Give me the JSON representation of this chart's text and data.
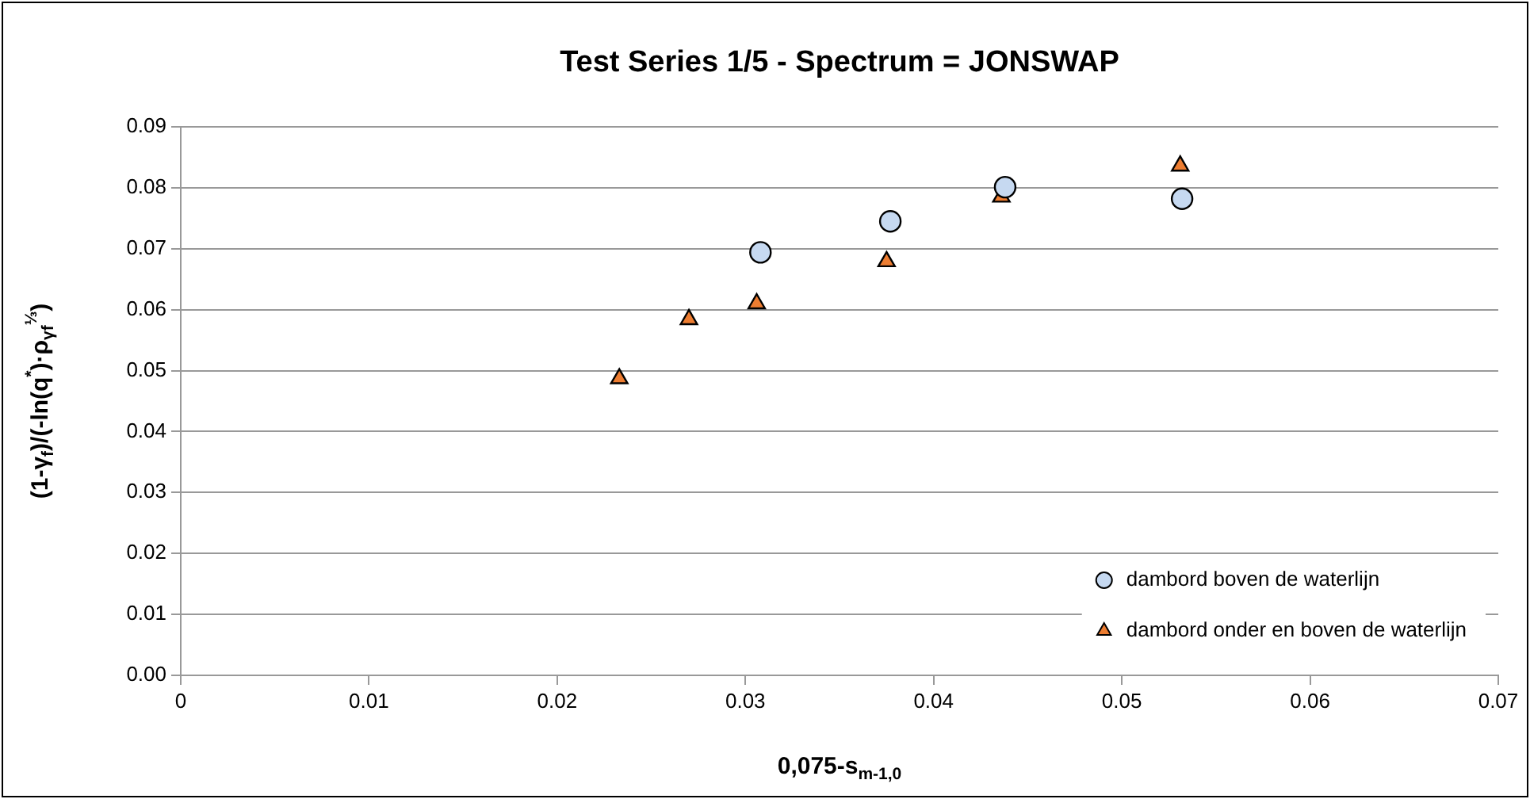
{
  "chart_data": {
    "type": "scatter",
    "title": "Test Series 1/5 - Spectrum = JONSWAP",
    "xlabel": "0,075-s$_{m-1,0}$",
    "ylabel": "(1-γ$_{f}$)/(-ln(q$^{*}$)·ρ$_{γf}$$^{⅓}$)",
    "xlim": [
      0,
      0.07
    ],
    "xticks": [
      0,
      0.01,
      0.02,
      0.03,
      0.04,
      0.05,
      0.06,
      0.07
    ],
    "ylim": [
      0,
      0.09
    ],
    "yticks": [
      {
        "value": 0,
        "label": "0.00"
      },
      {
        "value": 0.01,
        "label": "0.01"
      },
      {
        "value": 0.02,
        "label": "0.02"
      },
      {
        "value": 0.03,
        "label": "0.03"
      },
      {
        "value": 0.04,
        "label": "0.04"
      },
      {
        "value": 0.05,
        "label": "0.05"
      },
      {
        "value": 0.06,
        "label": "0.06"
      },
      {
        "value": 0.07,
        "label": "0.07"
      },
      {
        "value": 0.08,
        "label": "0.08"
      },
      {
        "value": 0.09,
        "label": "0.09"
      }
    ],
    "grid": "y",
    "legend": "bottom right",
    "series": [
      {
        "name": "dambord boven de waterlijn",
        "color": "#c6d9f1",
        "marker": "circle",
        "x": [
          0.0308,
          0.0377,
          0.0438,
          0.0532
        ],
        "values": [
          0.0694,
          0.0745,
          0.0801,
          0.0782
        ]
      },
      {
        "name": "dambord onder en boven de waterlijn",
        "color": "#ed7d31",
        "marker": "triangle",
        "x": [
          0.0233,
          0.027,
          0.0306,
          0.0375,
          0.0436,
          0.0531
        ],
        "values": [
          0.0487,
          0.0584,
          0.061,
          0.0679,
          0.0785,
          0.0836
        ]
      }
    ]
  }
}
